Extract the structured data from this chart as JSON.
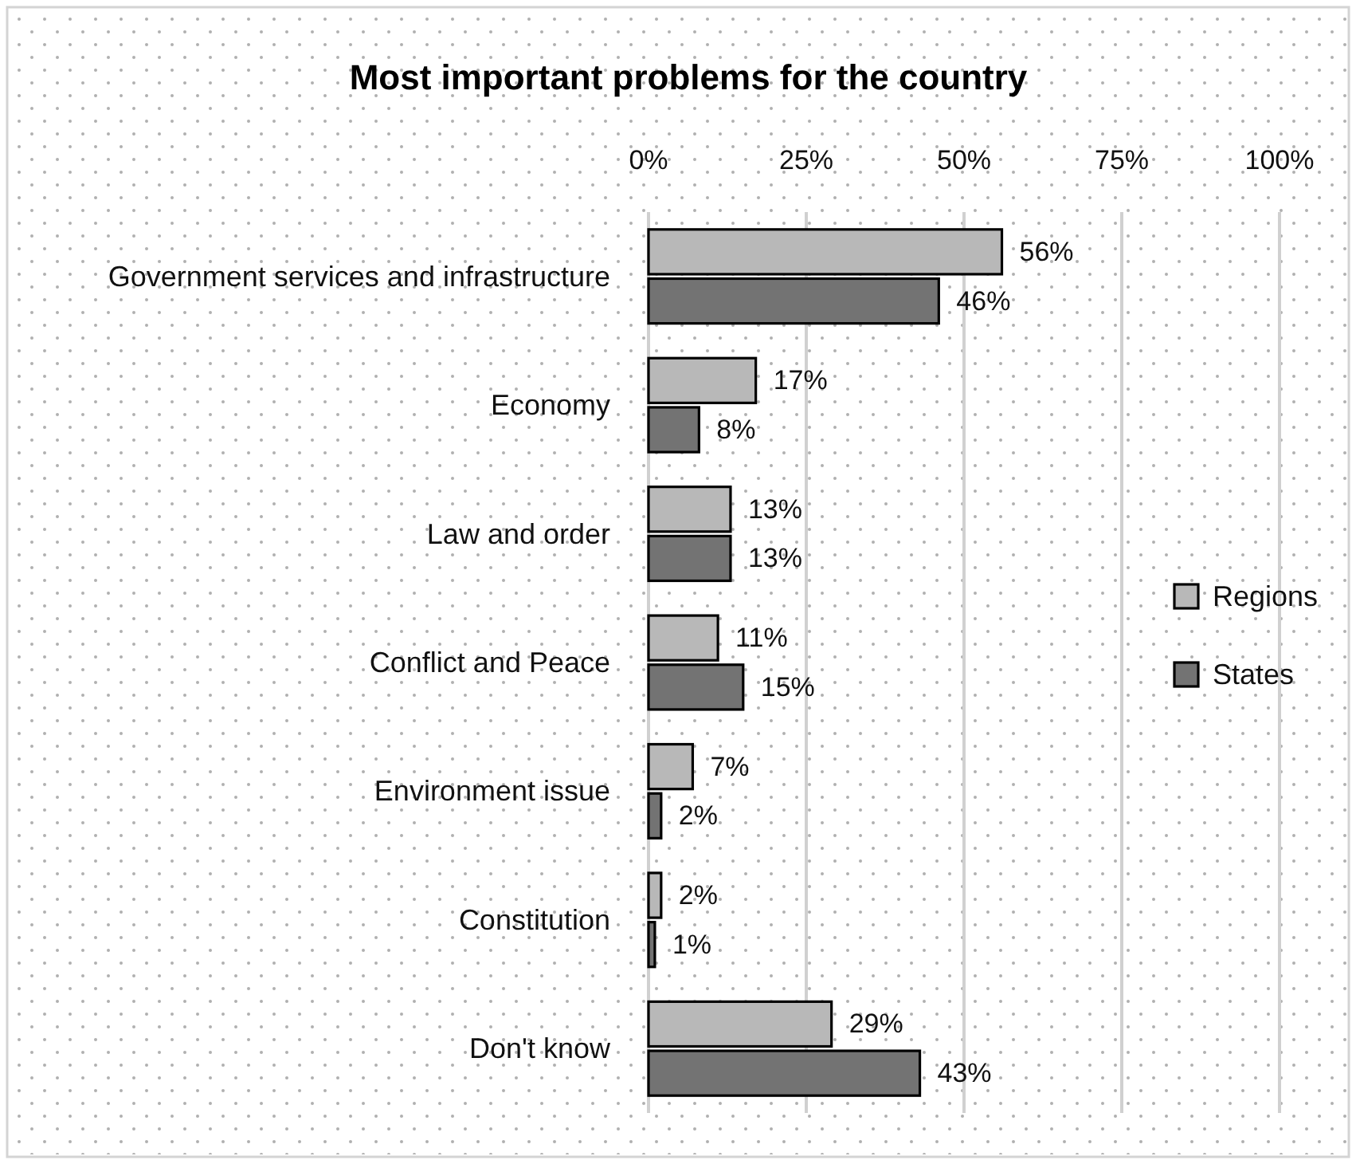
{
  "chart_data": {
    "type": "bar",
    "orientation": "horizontal",
    "title": "Most important problems for the country",
    "categories": [
      "Government services and infrastructure",
      "Economy",
      "Law and order",
      "Conflict and Peace",
      "Environment issue",
      "Constitution",
      "Don't know"
    ],
    "series": [
      {
        "name": "Regions",
        "color": "#b8b8b8",
        "values": [
          56,
          17,
          13,
          11,
          7,
          2,
          29
        ],
        "value_labels": [
          "56%",
          "17%",
          "13%",
          "11%",
          "7%",
          "2%",
          "29%"
        ]
      },
      {
        "name": "States",
        "color": "#737373",
        "values": [
          46,
          8,
          13,
          15,
          2,
          1,
          43
        ],
        "value_labels": [
          "46%",
          "8%",
          "13%",
          "15%",
          "2%",
          "1%",
          "43%"
        ]
      }
    ],
    "xlim": [
      0,
      100
    ],
    "xticks": [
      {
        "value": 0,
        "label": "0%"
      },
      {
        "value": 25,
        "label": "25%"
      },
      {
        "value": 50,
        "label": "50%"
      },
      {
        "value": 75,
        "label": "75%"
      },
      {
        "value": 100,
        "label": "100%"
      }
    ],
    "grid": "x",
    "legend": "right"
  }
}
